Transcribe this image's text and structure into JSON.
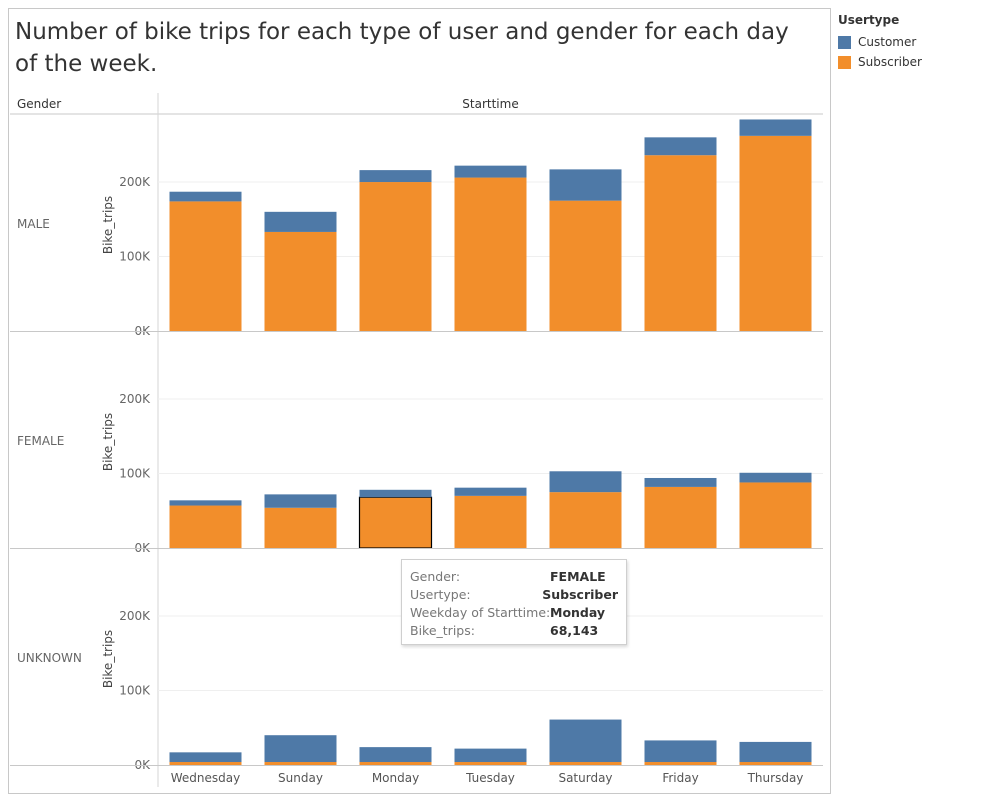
{
  "title": "Number of bike trips for each type of user and gender for each day of the week.",
  "legend": {
    "title": "Usertype",
    "items": [
      {
        "label": "Customer",
        "color": "#4e79a7"
      },
      {
        "label": "Subscriber",
        "color": "#f28e2b"
      }
    ]
  },
  "headers": {
    "row_dim": "Gender",
    "col_dim": "Starttime"
  },
  "tooltip": {
    "rows": [
      {
        "key": "Gender:",
        "value": "FEMALE"
      },
      {
        "key": "Usertype:",
        "value": "Subscriber"
      },
      {
        "key": "Weekday of Starttime:",
        "value": "Monday"
      },
      {
        "key": "Bike_trips:",
        "value": "68,143"
      }
    ]
  },
  "chart_data": {
    "type": "bar",
    "stacked": true,
    "categories": [
      "Wednesday",
      "Sunday",
      "Monday",
      "Tuesday",
      "Saturday",
      "Friday",
      "Thursday"
    ],
    "ylabel": "Bike_trips",
    "ylim": [
      0,
      290000
    ],
    "yticks": [
      0,
      100000,
      200000
    ],
    "ytick_labels": [
      "0K",
      "100K",
      "200K"
    ],
    "grid": true,
    "highlight": {
      "panel": "FEMALE",
      "category": "Monday",
      "series": "Subscriber"
    },
    "panels": [
      {
        "label": "MALE",
        "series": [
          {
            "name": "Subscriber",
            "values": [
              174000,
              133000,
              200000,
              206000,
              175000,
              236000,
              262000
            ]
          },
          {
            "name": "Customer",
            "values": [
              13000,
              27000,
              16000,
              16000,
              42000,
              24000,
              22000
            ]
          }
        ]
      },
      {
        "label": "FEMALE",
        "series": [
          {
            "name": "Subscriber",
            "values": [
              57000,
              54000,
              68143,
              70000,
              75000,
              82000,
              88000
            ]
          },
          {
            "name": "Customer",
            "values": [
              7000,
              18000,
              10000,
              11000,
              28000,
              12000,
              13000
            ]
          }
        ]
      },
      {
        "label": "UNKNOWN",
        "series": [
          {
            "name": "Subscriber",
            "values": [
              4000,
              4000,
              4000,
              4000,
              4000,
              4000,
              4000
            ]
          },
          {
            "name": "Customer",
            "values": [
              13000,
              36000,
              20000,
              18000,
              57000,
              29000,
              27000
            ]
          }
        ]
      }
    ]
  }
}
